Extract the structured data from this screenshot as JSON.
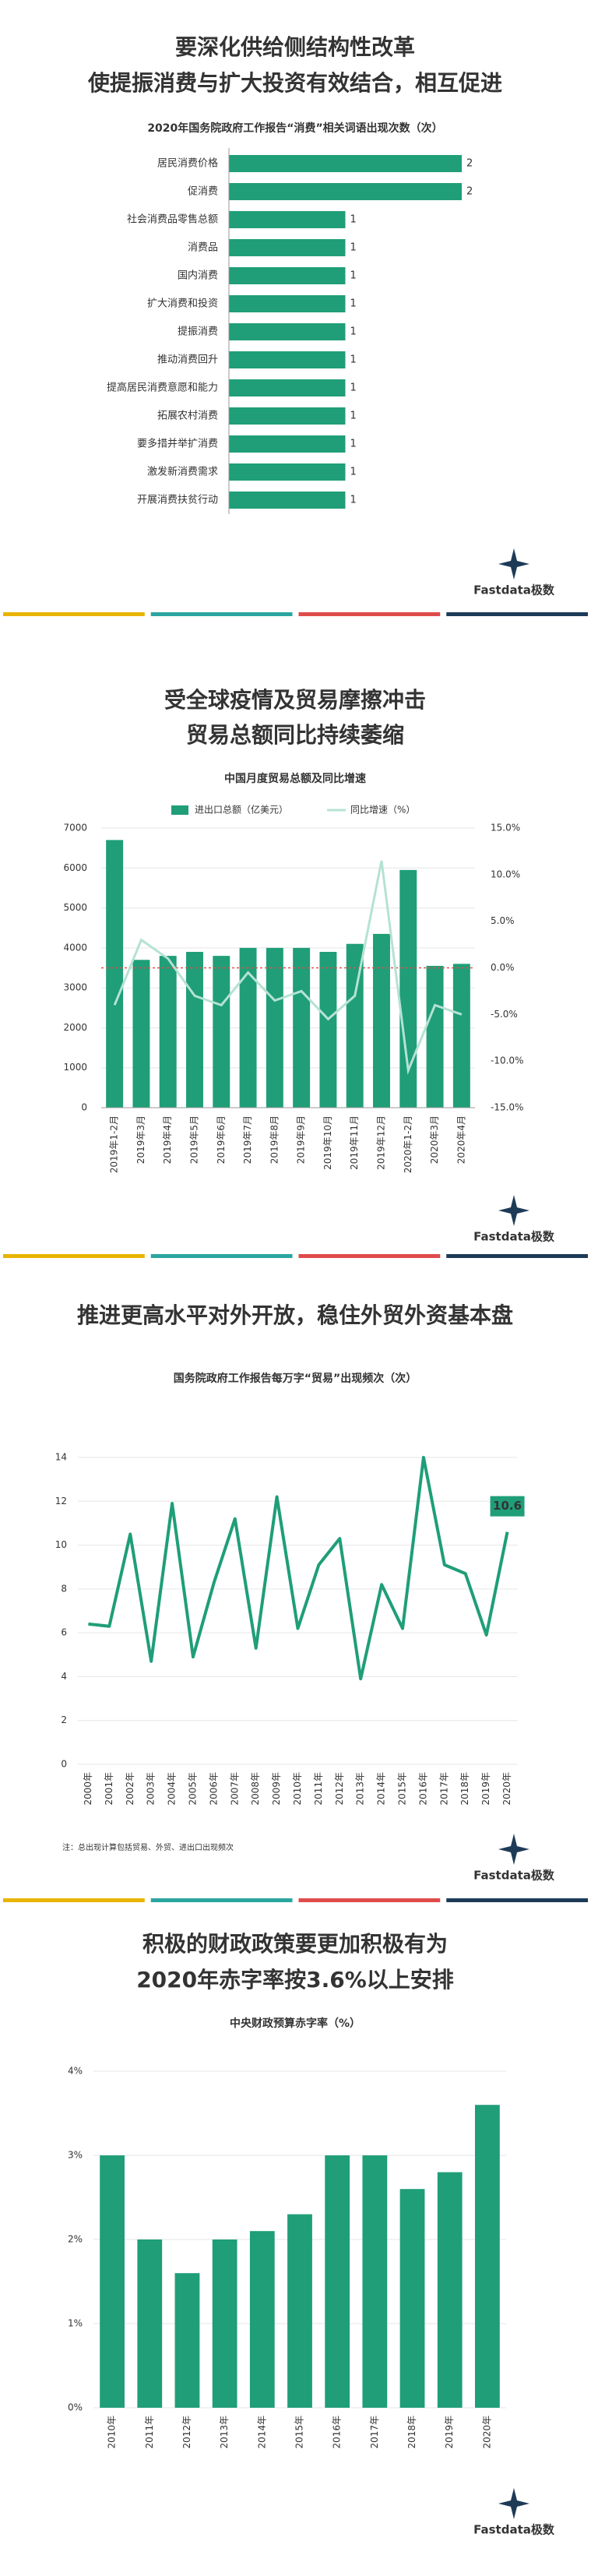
{
  "logo": "Fastdata极数",
  "chart_data": [
    {
      "type": "hbar",
      "heading": [
        "要深化供给侧结构性改革",
        "使提振消费与扩大投资有效结合，相互促进"
      ],
      "title": "2020年国务院政府工作报告“消费”相关词语出现次数（次）",
      "categories": [
        "居民消费价格",
        "促消费",
        "社会消费品零售总额",
        "消费品",
        "国内消费",
        "扩大消费和投资",
        "提振消费",
        "推动消费回升",
        "提高居民消费意愿和能力",
        "拓展农村消费",
        "要多措并举扩消费",
        "激发新消费需求",
        "开展消费扶贫行动"
      ],
      "values": [
        2,
        2,
        1,
        1,
        1,
        1,
        1,
        1,
        1,
        1,
        1,
        1,
        1
      ],
      "color": "#1f9e78"
    },
    {
      "type": "bar_line",
      "heading": [
        "受全球疫情及贸易摩擦冲击",
        "贸易总额同比持续萎缩"
      ],
      "title": "中国月度贸易总额及同比增速",
      "categories": [
        "2019年1-2月",
        "2019年3月",
        "2019年4月",
        "2019年5月",
        "2019年6月",
        "2019年7月",
        "2019年8月",
        "2019年9月",
        "2019年10月",
        "2019年11月",
        "2019年12月",
        "2020年1-2月",
        "2020年3月",
        "2020年4月"
      ],
      "series": [
        {
          "name": "进出口总额（亿美元）",
          "color": "#1f9e78",
          "type": "bar",
          "values": [
            6700,
            3700,
            3800,
            3900,
            3800,
            4000,
            4000,
            4000,
            3900,
            4100,
            4350,
            5950,
            3550,
            3600
          ]
        },
        {
          "name": "同比增速（%）",
          "color": "#b5e2d3",
          "type": "line",
          "axis": "y2",
          "values": [
            -4.0,
            3.0,
            1.0,
            -3.0,
            -4.0,
            -0.5,
            -3.5,
            -2.5,
            -5.5,
            -3.0,
            11.5,
            -11.0,
            -4.0,
            -5.0
          ]
        }
      ],
      "ylim": [
        0,
        7000
      ],
      "yticks": [
        0,
        1000,
        2000,
        3000,
        4000,
        5000,
        6000,
        7000
      ],
      "y2lim": [
        -15,
        15
      ],
      "y2ticks": [
        {
          "value": -15,
          "label": "-15.0%"
        },
        {
          "value": -10,
          "label": "-10.0%"
        },
        {
          "value": -5,
          "label": "-5.0%"
        },
        {
          "value": 0,
          "label": "0.0%"
        },
        {
          "value": 5,
          "label": "5.0%"
        },
        {
          "value": 10,
          "label": "10.0%"
        },
        {
          "value": 15,
          "label": "15.0%"
        }
      ],
      "zero_line_color": "#d9534f",
      "grid": true
    },
    {
      "type": "line",
      "heading": [
        "推进更高水平对外开放，稳住外贸外资基本盘"
      ],
      "title": "国务院政府工作报告每万字“贸易”出现频次（次）",
      "categories": [
        "2000年",
        "2001年",
        "2002年",
        "2003年",
        "2004年",
        "2005年",
        "2006年",
        "2007年",
        "2008年",
        "2009年",
        "2010年",
        "2011年",
        "2012年",
        "2013年",
        "2014年",
        "2015年",
        "2016年",
        "2017年",
        "2018年",
        "2019年",
        "2020年"
      ],
      "values": [
        6.4,
        6.3,
        10.5,
        4.7,
        11.9,
        4.9,
        8.3,
        11.2,
        5.3,
        12.2,
        6.2,
        9.1,
        10.3,
        3.9,
        8.2,
        6.2,
        14.0,
        9.1,
        8.7,
        5.9,
        10.6
      ],
      "color": "#1f9e78",
      "ylim": [
        0,
        14
      ],
      "yticks": [
        0,
        2,
        4,
        6,
        8,
        10,
        12,
        14
      ],
      "grid": true,
      "note": "注：总出现计算包括贸易、外贸、进出口出现频次"
    },
    {
      "type": "bar",
      "heading": [
        "积极的财政政策要更加积极有为",
        "2020年赤字率按3.6%以上安排"
      ],
      "title": "中央财政预算赤字率（%）",
      "categories": [
        "2010年",
        "2011年",
        "2012年",
        "2013年",
        "2014年",
        "2015年",
        "2016年",
        "2017年",
        "2018年",
        "2019年",
        "2020年"
      ],
      "values": [
        3.0,
        2.0,
        1.6,
        2.0,
        2.1,
        2.3,
        3.0,
        3.0,
        2.6,
        2.8,
        3.6
      ],
      "color": "#1f9e78",
      "ylim": [
        0,
        4
      ],
      "yticks": [
        {
          "value": 0,
          "label": "0%"
        },
        {
          "value": 1,
          "label": "1%"
        },
        {
          "value": 2,
          "label": "2%"
        },
        {
          "value": 3,
          "label": "3%"
        },
        {
          "value": 4,
          "label": "4%"
        }
      ],
      "grid": true
    }
  ]
}
